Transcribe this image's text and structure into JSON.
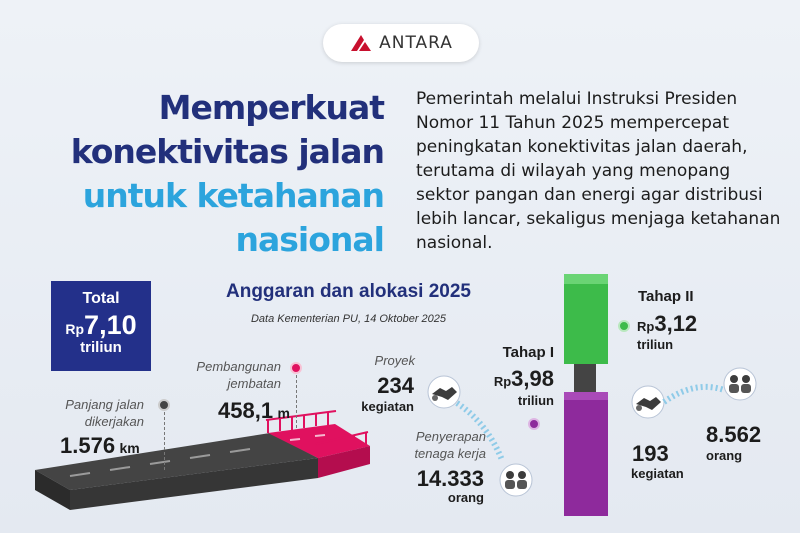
{
  "brand": {
    "name": "ANTARA"
  },
  "headline": {
    "line1": "Memperkuat",
    "line2": "konektivitas jalan",
    "line3": "untuk ketahanan",
    "line4": "nasional"
  },
  "intro": "Pemerintah melalui Instruksi Presiden Nomor 11 Tahun 2025 mempercepat peningkatan konektivitas jalan daerah, terutama di wilayah yang menopang sektor pangan dan energi agar distribusi lebih lancar, sekaligus menjaga ketahanan nasional.",
  "total": {
    "label": "Total",
    "currency": "Rp",
    "value": "7,10",
    "unit": "triliun"
  },
  "section": {
    "title": "Anggaran dan alokasi 2025",
    "source": "Data Kementerian PU, 14 Oktober 2025"
  },
  "road": {
    "label1": "Panjang jalan",
    "label2": "dikerjakan",
    "value": "1.576",
    "unit": "km"
  },
  "bridge": {
    "label1": "Pembangunan",
    "label2": "jembatan",
    "value": "458,1",
    "unit": "m"
  },
  "project_left": {
    "label": "Proyek",
    "value": "234",
    "unit": "kegiatan"
  },
  "workers_left": {
    "label1": "Penyerapan",
    "label2": "tenaga kerja",
    "value": "14.333",
    "unit": "orang"
  },
  "stage1": {
    "label": "Tahap I",
    "currency": "Rp",
    "value": "3,98",
    "unit": "triliun"
  },
  "stage2": {
    "label": "Tahap II",
    "currency": "Rp",
    "value": "3,12",
    "unit": "triliun"
  },
  "project_right": {
    "value": "193",
    "unit": "kegiatan"
  },
  "workers_right": {
    "value": "8.562",
    "unit": "orang"
  },
  "colors": {
    "navy": "#23308a",
    "sky": "#2ca4dd",
    "green": "#3dbb4a",
    "purple": "#8e2a9c",
    "magenta": "#d7185f"
  },
  "icons": [
    "antara-logo-icon",
    "handshake-icon",
    "people-icon",
    "road-icon",
    "bridge-icon"
  ]
}
